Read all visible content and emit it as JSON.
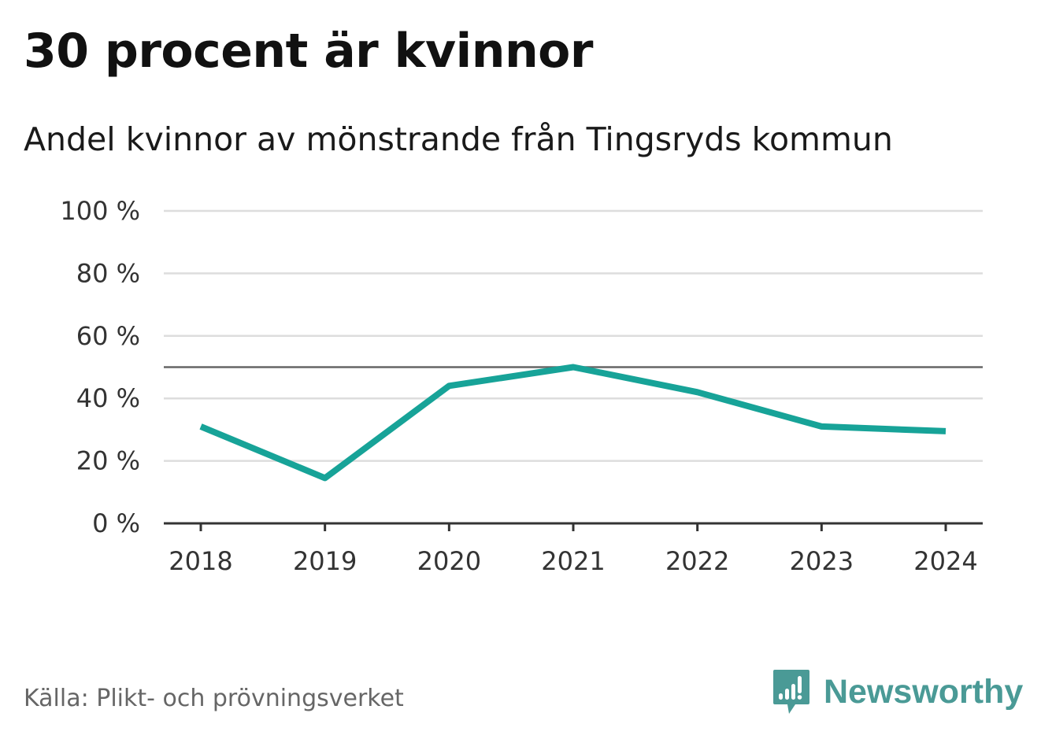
{
  "header": {
    "title": "30 procent är kvinnor",
    "subtitle": "Andel kvinnor av mönstrande från Tingsryds kommun"
  },
  "footer": {
    "source": "Källa: Plikt- och prövningsverket",
    "brand": "Newsworthy",
    "brand_icon": "newsworthy-logo-icon",
    "brand_color": "#4a9a96"
  },
  "chart_data": {
    "type": "line",
    "x": [
      "2018",
      "2019",
      "2020",
      "2021",
      "2022",
      "2023",
      "2024"
    ],
    "series": [
      {
        "values": [
          31,
          14.5,
          44,
          50,
          42,
          31,
          29.5
        ],
        "color": "#17a398"
      }
    ],
    "ylim": [
      0,
      100
    ],
    "yticks": [
      0,
      20,
      40,
      60,
      80,
      100
    ],
    "ytick_labels": [
      "0 %",
      "20 %",
      "40 %",
      "60 %",
      "80 %",
      "100 %"
    ],
    "reference_line": {
      "value": 50,
      "color": "#666666"
    },
    "grid": true,
    "grid_color": "#dddddd",
    "axis_color": "#333333"
  }
}
